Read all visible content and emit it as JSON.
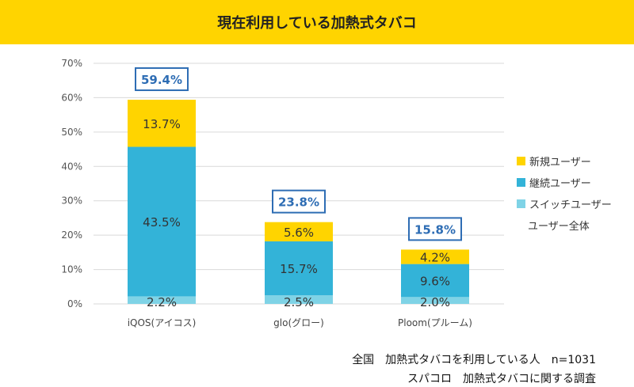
{
  "title": "現在利用している加熱式タバコ",
  "chart_data": {
    "type": "bar",
    "stacked": true,
    "categories": [
      "iQOS(アイコス)",
      "glo(グロー)",
      "Ploom(プルーム)"
    ],
    "series": [
      {
        "name": "スイッチユーザー",
        "values": [
          2.2,
          2.5,
          2.0
        ],
        "labels": [
          "2.2%",
          "2.5%",
          "2.0%"
        ],
        "color": "#7FD3E6"
      },
      {
        "name": "継続ユーザー",
        "values": [
          43.5,
          15.7,
          9.6
        ],
        "labels": [
          "43.5%",
          "15.7%",
          "9.6%"
        ],
        "color": "#33B3D8"
      },
      {
        "name": "新規ユーザー",
        "values": [
          13.7,
          5.6,
          4.2
        ],
        "labels": [
          "13.7%",
          "5.6%",
          "4.2%"
        ],
        "color": "#FFD400"
      }
    ],
    "totals": {
      "name": "ユーザー全体",
      "values": [
        59.4,
        23.8,
        15.8
      ],
      "labels": [
        "59.4%",
        "23.8%",
        "15.8%"
      ],
      "color": "#2E6DB4"
    },
    "yticks": [
      "0%",
      "10%",
      "20%",
      "30%",
      "40%",
      "50%",
      "60%",
      "70%"
    ],
    "ylim": [
      0,
      70
    ],
    "grid": true,
    "legend_position": "right"
  },
  "footnotes": [
    "全国　加熱式タバコを利用している人　n=1031",
    "スパコロ　加熱式タバコに関する調査"
  ]
}
